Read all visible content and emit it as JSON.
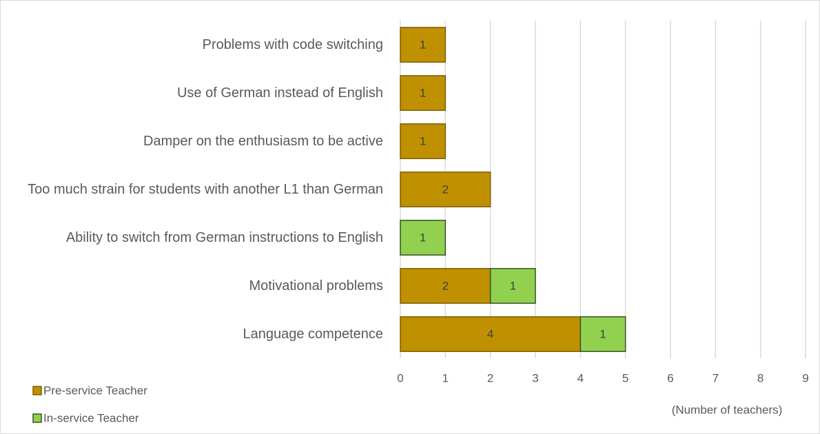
{
  "chart_data": {
    "type": "stacked_barh",
    "categories": [
      "Problems with code switching",
      "Use of German instead of English",
      "Damper on the enthusiasm to be active",
      "Too much strain for students with another L1 than German",
      "Ability to switch from German instructions to English",
      "Motivational problems",
      "Language competence"
    ],
    "series": [
      {
        "name": "Pre-service Teacher",
        "color": "#bf9000",
        "values": [
          1,
          1,
          1,
          2,
          null,
          2,
          4
        ]
      },
      {
        "name": "In-service Teacher",
        "color": "#92d050",
        "values": [
          null,
          null,
          null,
          null,
          1,
          1,
          1
        ]
      }
    ],
    "xlabel": "(Number of teachers)",
    "xlim": [
      0,
      9
    ],
    "xticks": [
      0,
      1,
      2,
      3,
      4,
      5,
      6,
      7,
      8,
      9
    ],
    "grid": true,
    "legend": "bottom-left"
  }
}
